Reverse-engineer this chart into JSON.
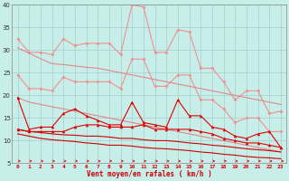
{
  "background_color": "#c8eeea",
  "grid_color": "#a8d4d0",
  "xlabel": "Vent moyen/en rafales ( km/h )",
  "xlim": [
    -0.5,
    23.5
  ],
  "ylim": [
    5,
    40
  ],
  "yticks": [
    5,
    10,
    15,
    20,
    25,
    30,
    35,
    40
  ],
  "xticks": [
    0,
    1,
    2,
    3,
    4,
    5,
    6,
    7,
    8,
    9,
    10,
    11,
    12,
    13,
    14,
    15,
    16,
    17,
    18,
    19,
    20,
    21,
    22,
    23
  ],
  "line_rafales_light": [
    32.5,
    29.5,
    29.5,
    29.0,
    32.5,
    31.0,
    31.5,
    31.5,
    31.5,
    29.0,
    40.0,
    39.5,
    29.5,
    29.5,
    34.5,
    34.0,
    26.0,
    26.0,
    23.0,
    19.0,
    21.0,
    21.0,
    16.0,
    16.5
  ],
  "line_moyen_light": [
    24.5,
    21.5,
    21.5,
    21.0,
    24.0,
    23.0,
    23.0,
    23.0,
    23.0,
    21.5,
    28.0,
    28.0,
    22.0,
    22.0,
    24.5,
    24.5,
    19.0,
    19.0,
    17.0,
    14.0,
    15.0,
    15.0,
    12.0,
    12.0
  ],
  "line_trend1": [
    30.5,
    29.3,
    28.1,
    27.0,
    26.8,
    26.5,
    26.2,
    26.0,
    25.5,
    25.0,
    24.5,
    24.0,
    23.5,
    23.0,
    22.5,
    22.0,
    21.5,
    21.0,
    20.5,
    20.0,
    19.5,
    19.0,
    18.5,
    18.0
  ],
  "line_trend2": [
    19.5,
    18.5,
    18.0,
    17.5,
    17.0,
    16.5,
    16.0,
    15.5,
    15.0,
    14.5,
    14.0,
    13.5,
    13.0,
    12.5,
    12.0,
    11.5,
    11.0,
    10.5,
    10.0,
    9.5,
    9.0,
    8.5,
    8.0,
    7.5
  ],
  "line_raf_red": [
    19.5,
    12.5,
    13.0,
    13.0,
    16.0,
    17.0,
    15.5,
    14.5,
    13.5,
    13.5,
    18.5,
    14.0,
    13.5,
    13.0,
    19.0,
    15.5,
    15.5,
    13.0,
    12.5,
    11.0,
    10.5,
    11.5,
    12.0,
    8.5
  ],
  "line_moy_red": [
    12.5,
    12.0,
    12.0,
    12.0,
    12.0,
    13.0,
    13.5,
    13.5,
    13.0,
    13.0,
    13.0,
    13.5,
    12.5,
    12.5,
    12.5,
    12.5,
    12.0,
    11.5,
    10.5,
    10.0,
    9.5,
    9.5,
    9.0,
    8.5
  ],
  "line_trend3": [
    12.5,
    12.0,
    11.8,
    11.5,
    11.3,
    11.2,
    11.0,
    11.0,
    10.8,
    10.5,
    10.5,
    10.2,
    10.0,
    10.0,
    9.8,
    9.5,
    9.3,
    9.0,
    8.8,
    8.5,
    8.2,
    8.0,
    7.8,
    7.5
  ],
  "line_trend4": [
    11.5,
    11.0,
    10.5,
    10.2,
    10.0,
    9.8,
    9.5,
    9.3,
    9.0,
    9.0,
    8.8,
    8.5,
    8.3,
    8.2,
    8.0,
    7.8,
    7.5,
    7.3,
    7.0,
    6.8,
    6.5,
    6.3,
    6.2,
    6.0
  ],
  "color_light": "#f09090",
  "color_red": "#dd0000",
  "color_trend_light": "#e08888",
  "color_trend_red": "#cc0000",
  "arrow_color": "#dd0000",
  "label_color": "#cc0000",
  "tick_color": "#dd0000"
}
